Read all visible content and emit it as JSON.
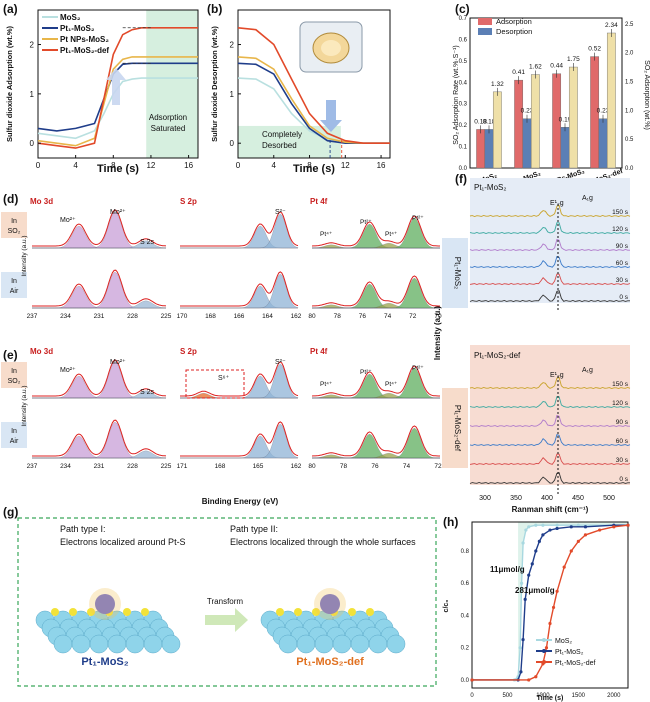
{
  "panels": {
    "a": {
      "label": "(a)",
      "ylabel": "Sulfur dioxide Adsorption (wt.%)",
      "xlabel": "Time (s)",
      "xticks": [
        "0",
        "4",
        "8",
        "12",
        "16"
      ],
      "yticks": [
        "0",
        "1",
        "2"
      ],
      "region_label_1": "Adsorption",
      "region_label_2": "Saturated",
      "legend": [
        "MoS₂",
        "Pt₁-MoS₂",
        "Pt NPs-MoS₂",
        "Pt₁-MoS₂-def"
      ]
    },
    "b": {
      "label": "(b)",
      "ylabel": "Sulfur dioxide Desorption (wt.%)",
      "xlabel": "Time (s)",
      "xticks": [
        "0",
        "4",
        "8",
        "12",
        "16"
      ],
      "yticks": [
        "0",
        "1",
        "2"
      ],
      "region_label_1": "Completely",
      "region_label_2": "Desorbed"
    },
    "c": {
      "label": "(c)",
      "ylabel_left": "SO₂ Adsorption Rate (wt.%·S⁻¹)",
      "ylabel_right": "SO₂ Adsorption (wt.%)",
      "legend": [
        "Adsorption",
        "Desorption"
      ],
      "yticks_left": [
        "0.0",
        "0.1",
        "0.2",
        "0.3",
        "0.4",
        "0.5",
        "0.6",
        "0.7"
      ],
      "yticks_right": [
        "0.0",
        "0.5",
        "1.0",
        "1.5",
        "2.0",
        "2.5"
      ]
    },
    "d": {
      "label": "(d)",
      "row1_label": [
        "In",
        "SO₂"
      ],
      "row2_label": [
        "In",
        "Air"
      ],
      "sections": [
        "Mo 3d",
        "S 2p",
        "Pt 4f"
      ],
      "ylabel": "Intensity (a.u.)",
      "peaks_mo": [
        "Mo²⁺",
        "Mo²⁺",
        "S 2s"
      ],
      "peaks_s": [
        "S²⁻"
      ],
      "peaks_pt": [
        "Pt⁴⁺",
        "Pt²⁺",
        "Pt⁴⁺",
        "Pt²⁺"
      ],
      "xticks_mo": [
        "237",
        "234",
        "231",
        "228",
        "225"
      ],
      "xticks_s": [
        "170",
        "168",
        "166",
        "164",
        "162"
      ],
      "xticks_pt": [
        "80",
        "78",
        "76",
        "74",
        "72",
        "70"
      ]
    },
    "e": {
      "label": "(e)",
      "row1_label": [
        "In",
        "SO₂"
      ],
      "row2_label": [
        "In",
        "Air"
      ],
      "sections": [
        "Mo 3d",
        "S 2p",
        "Pt 4f"
      ],
      "ylabel": "Intensity (a.u.)",
      "xlabel": "Binding Energy (eV)",
      "peaks_mo": [
        "Mo²⁺",
        "Mo²⁺",
        "S 2s"
      ],
      "peaks_s": [
        "S⁶⁺",
        "S²⁻"
      ],
      "peaks_pt": [
        "Pt⁴⁺",
        "Pt²⁺",
        "Pt⁴⁺",
        "Pt²⁺"
      ],
      "xticks_mo": [
        "237",
        "234",
        "231",
        "228",
        "225"
      ],
      "xticks_s": [
        "171",
        "168",
        "165",
        "162"
      ],
      "xticks_pt": [
        "80",
        "78",
        "76",
        "74",
        "72"
      ]
    },
    "f": {
      "label": "(f)",
      "top_title": "Pt₁-MoS₂",
      "bottom_title": "Pt₁-MoS₂-def",
      "side_top": "Pt₁-MoS₂",
      "side_bottom": "Pt₁-MoS₂-def",
      "peak_e": "E¹₂g",
      "peak_a": "A₁g",
      "times": [
        "150 s",
        "120 s",
        "90 s",
        "60 s",
        "30 s",
        "0 s"
      ],
      "ylabel": "Intensity (a.u.)",
      "xlabel": "Ranman shift (cm⁻¹)",
      "xticks": [
        "300",
        "350",
        "400",
        "450",
        "500"
      ]
    },
    "g": {
      "label": "(g)",
      "path1_line1": "Path type I:",
      "path1_line2": "Electrons localized around Pt-S",
      "path2_line1": "Path type II:",
      "path2_line2": "Electrons localized through the whole surfaces",
      "transform": "Transform",
      "left_name": "Pt₁-MoS₂",
      "right_name": "Pt₁-MoS₂-def"
    },
    "h": {
      "label": "(h)",
      "ylabel": "c/c₀",
      "xlabel": "Time (s)",
      "ann1": "11μmol/g",
      "ann2": "281μmol/g",
      "legend": [
        "MoS₂",
        "Pt₁-MoS₂",
        "Pt₁-MoS₂-def"
      ],
      "xticks": [
        "0",
        "500",
        "1000",
        "1500",
        "2000"
      ],
      "yticks": [
        "0.0",
        "0.2",
        "0.4",
        "0.6",
        "0.8"
      ]
    }
  },
  "chart_data": [
    {
      "type": "line",
      "panel": "a",
      "xlabel": "Time (s)",
      "ylabel": "Sulfur dioxide Adsorption (wt.%)",
      "xlim": [
        0,
        17
      ],
      "ylim": [
        -0.3,
        2.7
      ],
      "series": [
        {
          "name": "MoS₂",
          "color": "#b9e0e0",
          "x": [
            0,
            2,
            4,
            6,
            7,
            8,
            9,
            10,
            11,
            12,
            14,
            16,
            17
          ],
          "y": [
            0.2,
            0.15,
            0.1,
            0.25,
            0.6,
            1.0,
            1.25,
            1.3,
            1.32,
            1.32,
            1.32,
            1.32,
            1.32
          ]
        },
        {
          "name": "Pt₁-MoS₂",
          "color": "#1f3d8a",
          "x": [
            0,
            2,
            4,
            6,
            7,
            8,
            9,
            10,
            11,
            12,
            14,
            16,
            17
          ],
          "y": [
            0.3,
            0.25,
            0.3,
            0.4,
            0.9,
            1.4,
            1.6,
            1.62,
            1.62,
            1.62,
            1.62,
            1.62,
            1.62
          ]
        },
        {
          "name": "Pt NPs-MoS₂",
          "color": "#e8b64a",
          "x": [
            0,
            2,
            4,
            6,
            7,
            8,
            9,
            10,
            11,
            12,
            14,
            16,
            17
          ],
          "y": [
            0.05,
            0.0,
            -0.05,
            0.1,
            0.8,
            1.5,
            1.7,
            1.75,
            1.75,
            1.75,
            1.75,
            1.75,
            1.75
          ]
        },
        {
          "name": "Pt₁-MoS₂-def",
          "color": "#e24a2a",
          "x": [
            0,
            2,
            4,
            6,
            7,
            8,
            9,
            10,
            11,
            12,
            14,
            16,
            17
          ],
          "y": [
            0.0,
            -0.05,
            -0.1,
            0.0,
            0.9,
            1.8,
            2.2,
            2.3,
            2.34,
            2.34,
            2.34,
            2.34,
            2.34
          ]
        }
      ]
    },
    {
      "type": "line",
      "panel": "b",
      "xlabel": "Time (s)",
      "ylabel": "Sulfur dioxide Desorption (wt.%)",
      "xlim": [
        0,
        17
      ],
      "ylim": [
        -0.3,
        2.7
      ],
      "series": [
        {
          "name": "MoS₂",
          "color": "#b9e0e0",
          "x": [
            0,
            2,
            4,
            6,
            8,
            10,
            12,
            14,
            16,
            17
          ],
          "y": [
            1.32,
            1.3,
            1.1,
            0.6,
            0.25,
            0.08,
            0.02,
            0.0,
            0.0,
            0.0
          ]
        },
        {
          "name": "Pt₁-MoS₂",
          "color": "#1f3d8a",
          "x": [
            0,
            2,
            4,
            6,
            8,
            10,
            12,
            14,
            16,
            17
          ],
          "y": [
            1.62,
            1.6,
            1.4,
            0.8,
            0.3,
            0.05,
            0.0,
            0.0,
            0.0,
            0.0
          ]
        },
        {
          "name": "Pt NPs-MoS₂",
          "color": "#e8b64a",
          "x": [
            0,
            2,
            4,
            6,
            8,
            10,
            12,
            14,
            16,
            17
          ],
          "y": [
            1.75,
            1.72,
            1.5,
            0.9,
            0.35,
            0.1,
            0.02,
            0.0,
            0.0,
            0.0
          ]
        },
        {
          "name": "Pt₁-MoS₂-def",
          "color": "#e24a2a",
          "x": [
            0,
            2,
            4,
            6,
            8,
            10,
            12,
            14,
            16,
            17
          ],
          "y": [
            2.34,
            2.3,
            2.0,
            1.3,
            0.6,
            0.2,
            0.05,
            0.0,
            0.0,
            0.0
          ]
        }
      ]
    },
    {
      "type": "bar",
      "panel": "c",
      "categories": [
        "MoS₂",
        "Pt₁-MoS₂",
        "Pt NPs-MoS₂",
        "Pt₁-MoS₂-def"
      ],
      "ylim": [
        0,
        0.7
      ],
      "ylim_right": [
        0,
        2.6
      ],
      "series": [
        {
          "name": "Adsorption",
          "color": "#e06a6a",
          "values": [
            0.18,
            0.41,
            0.44,
            0.52
          ],
          "labels": [
            "0.18",
            "0.41",
            "0.44",
            "0.52"
          ]
        },
        {
          "name": "Desorption",
          "color": "#5b7fb5",
          "values": [
            0.18,
            0.23,
            0.19,
            0.23
          ],
          "labels": [
            "0.18",
            "0.23",
            "0.19",
            "0.23"
          ]
        },
        {
          "name": "SO₂ Adsorption",
          "color": "#efe0a8",
          "axis": "right",
          "values": [
            1.32,
            1.62,
            1.75,
            2.34
          ],
          "labels": [
            "1.32",
            "1.62",
            "1.75",
            "2.34"
          ]
        }
      ]
    },
    {
      "type": "line",
      "panel": "h",
      "xlabel": "Time (s)",
      "ylabel": "c/c₀",
      "xlim": [
        0,
        2200
      ],
      "ylim": [
        -0.05,
        0.98
      ],
      "series": [
        {
          "name": "MoS₂",
          "color": "#a8d8e0",
          "x": [
            0,
            600,
            650,
            680,
            700,
            720,
            760,
            800,
            900,
            1000,
            1200,
            1500,
            2000,
            2200
          ],
          "y": [
            0,
            0,
            0.02,
            0.2,
            0.6,
            0.85,
            0.93,
            0.95,
            0.96,
            0.96,
            0.96,
            0.96,
            0.96,
            0.96
          ]
        },
        {
          "name": "Pt₁-MoS₂",
          "color": "#1f3d8a",
          "x": [
            0,
            650,
            690,
            720,
            750,
            800,
            850,
            900,
            950,
            1000,
            1100,
            1200,
            1400,
            1600,
            2000,
            2200
          ],
          "y": [
            0,
            0,
            0.05,
            0.25,
            0.5,
            0.65,
            0.72,
            0.8,
            0.86,
            0.9,
            0.93,
            0.94,
            0.95,
            0.95,
            0.96,
            0.96
          ]
        },
        {
          "name": "Pt₁-MoS₂-def",
          "color": "#e24a2a",
          "x": [
            0,
            800,
            900,
            1000,
            1050,
            1100,
            1150,
            1200,
            1300,
            1400,
            1500,
            1600,
            1800,
            2000,
            2200
          ],
          "y": [
            0,
            0,
            0.02,
            0.1,
            0.2,
            0.35,
            0.45,
            0.55,
            0.7,
            0.8,
            0.86,
            0.9,
            0.93,
            0.95,
            0.96
          ]
        }
      ]
    }
  ]
}
